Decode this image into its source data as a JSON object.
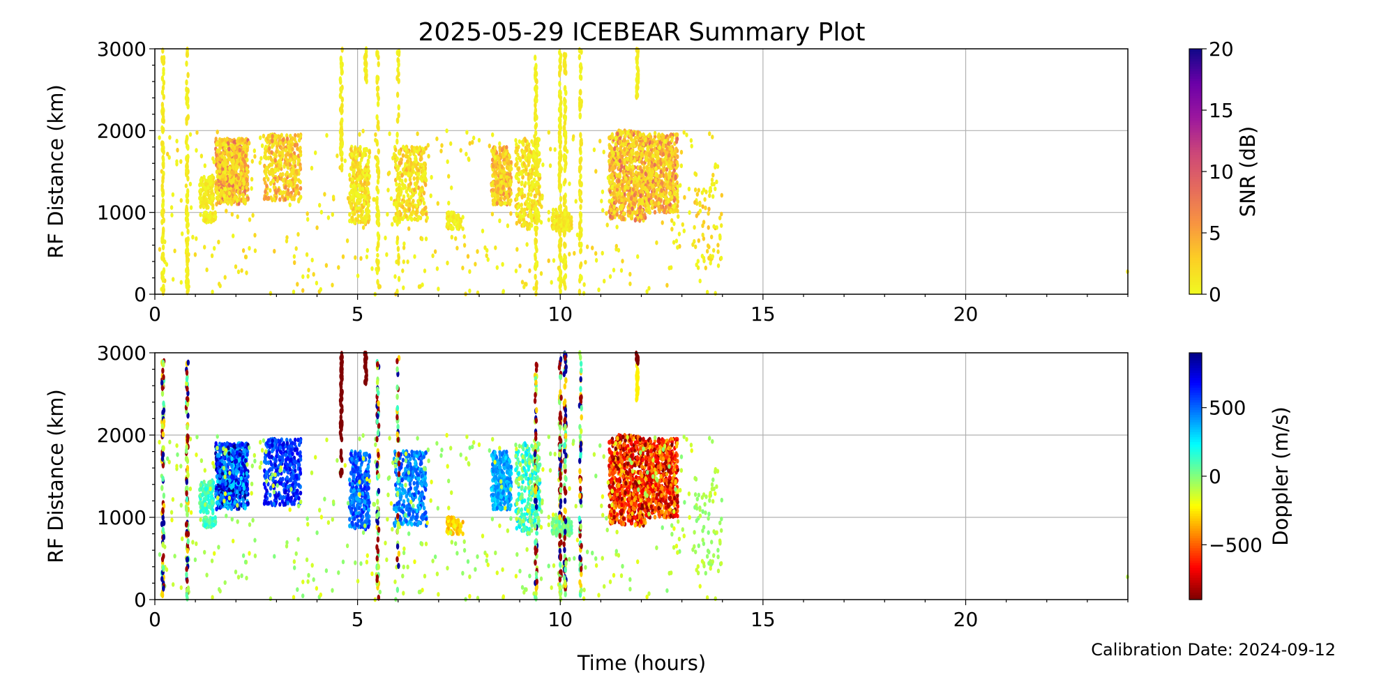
{
  "chart_data": [
    {
      "type": "scatter",
      "title": "2025-05-29 ICEBEAR Summary Plot",
      "xlabel": "Time (hours)",
      "ylabel": "RF Distance (km)",
      "xlim": [
        0,
        24
      ],
      "ylim": [
        0,
        3000
      ],
      "xticks": [
        "0",
        "5",
        "10",
        "15",
        "20"
      ],
      "yticks": [
        "0",
        "1000",
        "2000",
        "3000"
      ],
      "grid": true,
      "color_variable": "snr",
      "colorbar": {
        "label": "SNR (dB)",
        "range": [
          0,
          20
        ],
        "ticks": [
          "0",
          "5",
          "10",
          "15",
          "20"
        ],
        "colormap": "plasma_r"
      }
    },
    {
      "type": "scatter",
      "xlabel": "Time (hours)",
      "ylabel": "RF Distance (km)",
      "xlim": [
        0,
        24
      ],
      "ylim": [
        0,
        3000
      ],
      "xticks": [
        "0",
        "5",
        "10",
        "15",
        "20"
      ],
      "yticks": [
        "0",
        "1000",
        "2000",
        "3000"
      ],
      "grid": true,
      "color_variable": "doppler",
      "colorbar": {
        "label": "Doppler (m/s)",
        "range": [
          -900,
          900
        ],
        "ticks": [
          "500",
          "0",
          "−500"
        ],
        "tick_values": [
          500,
          0,
          -500
        ],
        "colormap": "jet_r"
      }
    }
  ],
  "echo_clusters": [
    {
      "t": [
        1.5,
        2.3
      ],
      "r": [
        1100,
        1900
      ],
      "n": 700,
      "snr": [
        1,
        9
      ],
      "doppler": [
        250,
        900
      ]
    },
    {
      "t": [
        1.1,
        1.45
      ],
      "r": [
        1050,
        1450
      ],
      "n": 120,
      "snr": [
        0,
        2
      ],
      "doppler": [
        0,
        200
      ]
    },
    {
      "t": [
        1.2,
        1.5
      ],
      "r": [
        880,
        1000
      ],
      "n": 60,
      "snr": [
        0,
        2
      ],
      "doppler": [
        0,
        200
      ]
    },
    {
      "t": [
        2.7,
        3.6
      ],
      "r": [
        1150,
        1950
      ],
      "n": 350,
      "snr": [
        1,
        7
      ],
      "doppler": [
        450,
        750
      ]
    },
    {
      "t": [
        4.8,
        5.3
      ],
      "r": [
        850,
        1800
      ],
      "n": 300,
      "snr": [
        0,
        4
      ],
      "doppler": [
        350,
        650
      ]
    },
    {
      "t": [
        5.9,
        6.7
      ],
      "r": [
        900,
        1800
      ],
      "n": 300,
      "snr": [
        0,
        5
      ],
      "doppler": [
        300,
        600
      ]
    },
    {
      "t": [
        7.2,
        7.6
      ],
      "r": [
        800,
        1000
      ],
      "n": 70,
      "snr": [
        0,
        3
      ],
      "doppler": [
        -400,
        -200
      ]
    },
    {
      "t": [
        8.3,
        8.8
      ],
      "r": [
        1100,
        1800
      ],
      "n": 300,
      "snr": [
        1,
        7
      ],
      "doppler": [
        250,
        500
      ]
    },
    {
      "t": [
        8.9,
        9.5
      ],
      "r": [
        800,
        1900
      ],
      "n": 300,
      "snr": [
        0,
        4
      ],
      "doppler": [
        -100,
        300
      ]
    },
    {
      "t": [
        9.8,
        10.3
      ],
      "r": [
        780,
        1000
      ],
      "n": 120,
      "snr": [
        0,
        3
      ],
      "doppler": [
        -100,
        100
      ]
    },
    {
      "t": [
        11.2,
        12.1
      ],
      "r": [
        900,
        2000
      ],
      "n": 700,
      "snr": [
        1,
        9
      ],
      "doppler": [
        -900,
        -300
      ]
    },
    {
      "t": [
        12.1,
        12.9
      ],
      "r": [
        1000,
        1950
      ],
      "n": 550,
      "snr": [
        1,
        9
      ],
      "doppler": [
        -900,
        -300
      ]
    },
    {
      "t": [
        0.1,
        14.0
      ],
      "r": [
        0,
        2000
      ],
      "n": 450,
      "snr": [
        0,
        3
      ],
      "doppler": [
        -200,
        0
      ]
    },
    {
      "t": [
        13.3,
        14.0
      ],
      "r": [
        300,
        1600
      ],
      "n": 70,
      "snr": [
        0,
        4
      ],
      "doppler": [
        -150,
        0
      ]
    },
    {
      "t": [
        23.95,
        24.0
      ],
      "r": [
        270,
        290
      ],
      "n": 1,
      "snr": [
        0,
        1
      ],
      "doppler": [
        -100,
        -100
      ]
    }
  ],
  "echo_streaks": [
    {
      "t": 0.2,
      "r": [
        0,
        3000
      ],
      "n": 90,
      "doppler": "mixed"
    },
    {
      "t": 0.8,
      "r": [
        0,
        3000
      ],
      "n": 90,
      "doppler": "mixed"
    },
    {
      "t": 4.6,
      "r": [
        1500,
        3000
      ],
      "n": 60,
      "doppler": -900
    },
    {
      "t": 5.2,
      "r": [
        2600,
        3000
      ],
      "n": 25,
      "doppler": -900
    },
    {
      "t": 5.5,
      "r": [
        0,
        3000
      ],
      "n": 70,
      "doppler": "mixed"
    },
    {
      "t": 6.0,
      "r": [
        0,
        3000
      ],
      "n": 40,
      "doppler": "mixed"
    },
    {
      "t": 9.4,
      "r": [
        0,
        2900
      ],
      "n": 80,
      "doppler": "mixed"
    },
    {
      "t": 10.0,
      "r": [
        0,
        3000
      ],
      "n": 90,
      "doppler": "mixed"
    },
    {
      "t": 10.12,
      "r": [
        0,
        3000
      ],
      "n": 90,
      "doppler": "mixed"
    },
    {
      "t": 10.5,
      "r": [
        0,
        3000
      ],
      "n": 70,
      "doppler": "mixed"
    },
    {
      "t": 11.9,
      "r": [
        2400,
        2850
      ],
      "n": 30,
      "doppler": -250
    },
    {
      "t": 11.9,
      "r": [
        2850,
        3000
      ],
      "n": 10,
      "doppler": -900
    }
  ],
  "calibration": "Calibration Date: 2024-09-12"
}
